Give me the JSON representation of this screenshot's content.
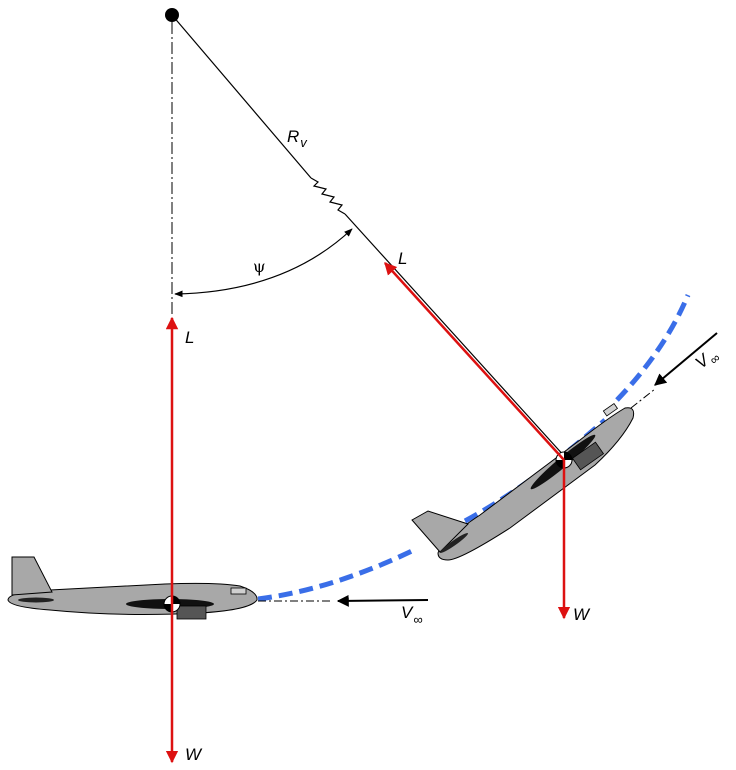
{
  "labels": {
    "radius_main": "R",
    "radius_sub": "v",
    "angle": "ψ",
    "lift_left": "L",
    "lift_right": "L",
    "weight_left": "W",
    "weight_right": "W",
    "airspeed_left_main": "V",
    "airspeed_left_sub": "∞",
    "airspeed_right_main": "V",
    "airspeed_right_sub": "∞"
  },
  "colors": {
    "force_vector": "#dd1111",
    "flight_path": "#3a6ee8",
    "aircraft_body": "#a8a8a8",
    "aircraft_dark": "#555555",
    "line": "#000000"
  }
}
